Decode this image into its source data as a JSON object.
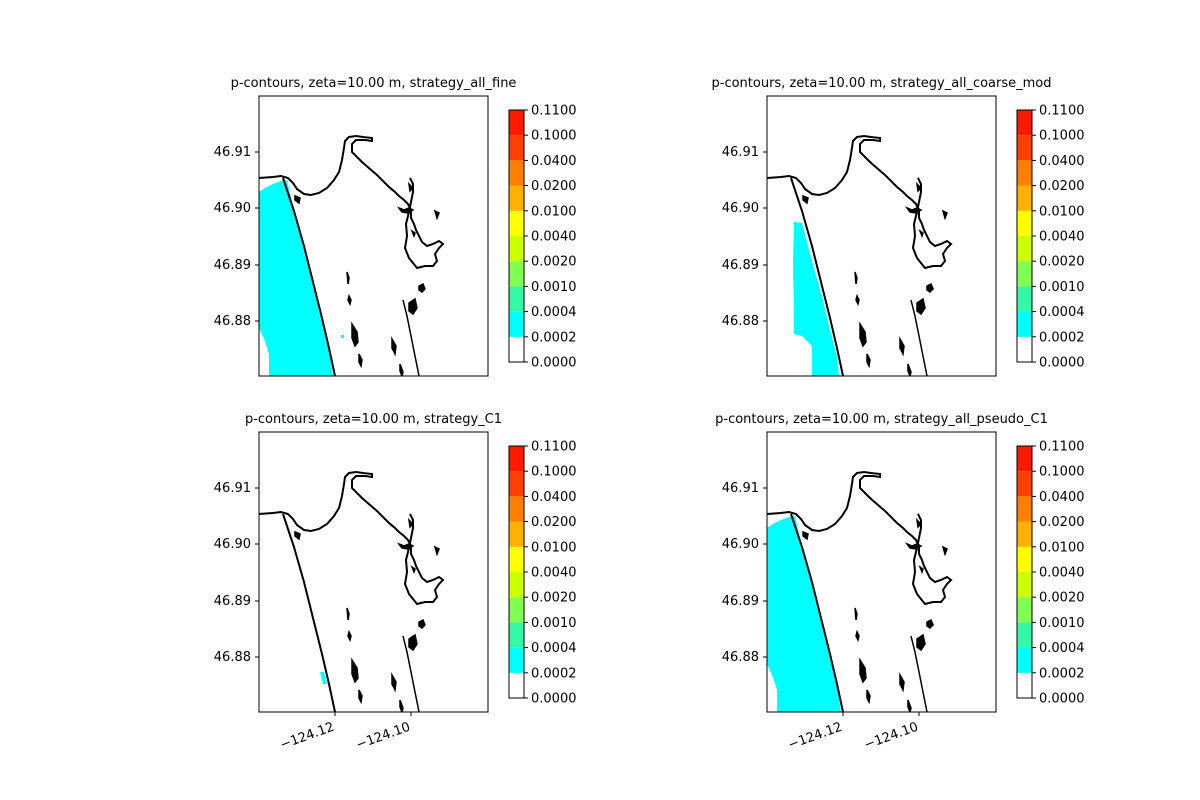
{
  "colors": {
    "fill": "#00ffff",
    "coast": "#000000",
    "levels": [
      "#ffffff",
      "#00ffff",
      "#33f9a6",
      "#80ff52",
      "#ccff00",
      "#ffff00",
      "#ffb000",
      "#ff8000",
      "#ff4000",
      "#ff1a00",
      "#ff0000"
    ]
  },
  "chart_data": [
    {
      "type": "contour-map",
      "title": "p-contours, zeta=10.00 m, strategy_all_fine",
      "y_ticks": [
        "46.91",
        "46.90",
        "46.89",
        "46.88"
      ],
      "x_ticks": [],
      "colorbar_levels": [
        "0.1100",
        "0.1000",
        "0.0400",
        "0.0200",
        "0.0100",
        "0.0040",
        "0.0020",
        "0.0010",
        "0.0004",
        "0.0002",
        "0.0000"
      ],
      "filled_level": "0.0002-0.0004",
      "fill_extent": "large"
    },
    {
      "type": "contour-map",
      "title": "p-contours, zeta=10.00 m, strategy_all_coarse_mod",
      "y_ticks": [
        "46.91",
        "46.90",
        "46.89",
        "46.88"
      ],
      "x_ticks": [],
      "colorbar_levels": [
        "0.1100",
        "0.1000",
        "0.0400",
        "0.0200",
        "0.0100",
        "0.0040",
        "0.0020",
        "0.0010",
        "0.0004",
        "0.0002",
        "0.0000"
      ],
      "filled_level": "0.0002-0.0004",
      "fill_extent": "medium"
    },
    {
      "type": "contour-map",
      "title": "p-contours, zeta=10.00 m, strategy_C1",
      "y_ticks": [
        "46.91",
        "46.90",
        "46.89",
        "46.88"
      ],
      "x_ticks": [
        "−124.12",
        "−124.10"
      ],
      "colorbar_levels": [
        "0.1100",
        "0.1000",
        "0.0400",
        "0.0200",
        "0.0100",
        "0.0040",
        "0.0020",
        "0.0010",
        "0.0004",
        "0.0002",
        "0.0000"
      ],
      "filled_level": "0.0002-0.0004",
      "fill_extent": "tiny"
    },
    {
      "type": "contour-map",
      "title": "p-contours, zeta=10.00 m, strategy_all_pseudo_C1",
      "y_ticks": [
        "46.91",
        "46.90",
        "46.89",
        "46.88"
      ],
      "x_ticks": [
        "−124.12",
        "−124.10"
      ],
      "colorbar_levels": [
        "0.1100",
        "0.1000",
        "0.0400",
        "0.0200",
        "0.0100",
        "0.0040",
        "0.0020",
        "0.0010",
        "0.0004",
        "0.0002",
        "0.0000"
      ],
      "filled_level": "0.0002-0.0004",
      "fill_extent": "large"
    }
  ]
}
